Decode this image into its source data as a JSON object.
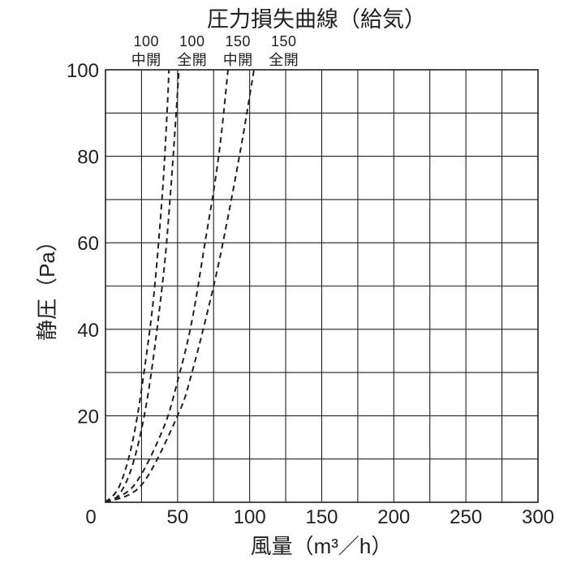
{
  "chart_data": {
    "type": "line",
    "title": "圧力損失曲線（給気）",
    "xlabel": "風量（m³／h）",
    "ylabel": "静圧（Pa）",
    "xlim": [
      0,
      300
    ],
    "ylim": [
      0,
      100
    ],
    "x_ticks": [
      0,
      50,
      100,
      150,
      200,
      250,
      300
    ],
    "y_ticks": [
      20,
      40,
      60,
      80,
      100
    ],
    "x_grid_step": 25,
    "y_grid_step": 10,
    "grid": true,
    "legend": "top-left",
    "series": [
      {
        "name": "100中開",
        "size_label": "100",
        "opening_label": "中開",
        "points": [
          [
            0,
            0
          ],
          [
            10,
            4
          ],
          [
            20,
            16
          ],
          [
            30,
            38
          ],
          [
            35,
            53
          ],
          [
            40,
            74
          ],
          [
            43,
            92
          ],
          [
            44,
            100
          ]
        ]
      },
      {
        "name": "100全開",
        "size_label": "100",
        "opening_label": "全開",
        "points": [
          [
            0,
            0
          ],
          [
            10,
            2
          ],
          [
            20,
            10
          ],
          [
            30,
            26
          ],
          [
            40,
            52
          ],
          [
            45,
            71
          ],
          [
            49,
            90
          ],
          [
            51,
            100
          ]
        ]
      },
      {
        "name": "150中開",
        "size_label": "150",
        "opening_label": "中開",
        "points": [
          [
            0,
            0
          ],
          [
            20,
            4
          ],
          [
            40,
            17
          ],
          [
            50,
            28
          ],
          [
            60,
            42
          ],
          [
            70,
            62
          ],
          [
            75,
            72
          ],
          [
            80,
            84
          ],
          [
            85,
            100
          ]
        ]
      },
      {
        "name": "150全開",
        "size_label": "150",
        "opening_label": "全開",
        "points": [
          [
            0,
            0
          ],
          [
            25,
            4
          ],
          [
            50,
            20
          ],
          [
            60,
            30
          ],
          [
            75,
            50
          ],
          [
            85,
            66
          ],
          [
            95,
            84
          ],
          [
            103,
            100
          ]
        ]
      }
    ]
  }
}
